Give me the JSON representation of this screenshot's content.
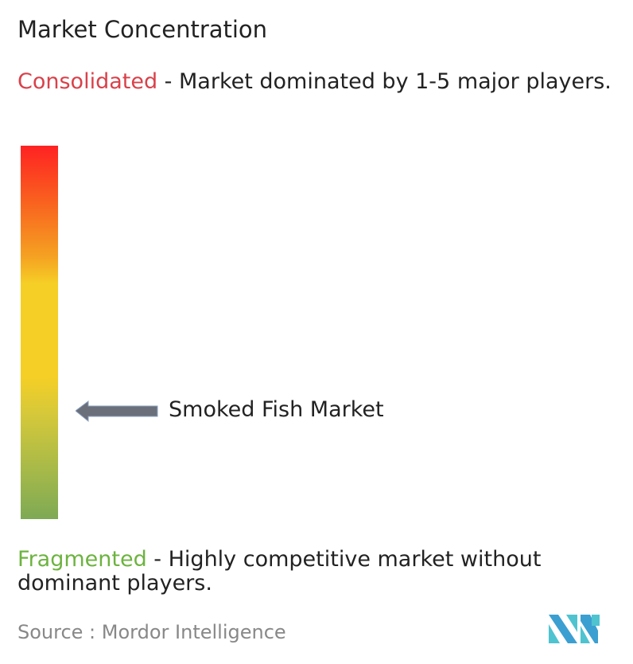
{
  "title": "Market Concentration",
  "consolidated": {
    "label": "Consolidated",
    "description": " - Market dominated by 1-5 major players.",
    "color": "#d9414a"
  },
  "fragmented": {
    "label": "Fragmented",
    "description": " - Highly competitive market without dominant players.",
    "color": "#6db33f"
  },
  "scale": {
    "top_color": "#ff2222",
    "middle_color": "#f5cf26",
    "bottom_color": "#7ea955"
  },
  "marker": {
    "label": "Smoked Fish Market",
    "level": 0.29,
    "arrow_color": "#6b6f7a",
    "icon": "arrow-left-icon"
  },
  "source": "Source :  Mordor Intelligence",
  "logo": {
    "text": "Mordor Intelligence",
    "colors": [
      "#3b9fd1",
      "#4fc3d0"
    ]
  }
}
